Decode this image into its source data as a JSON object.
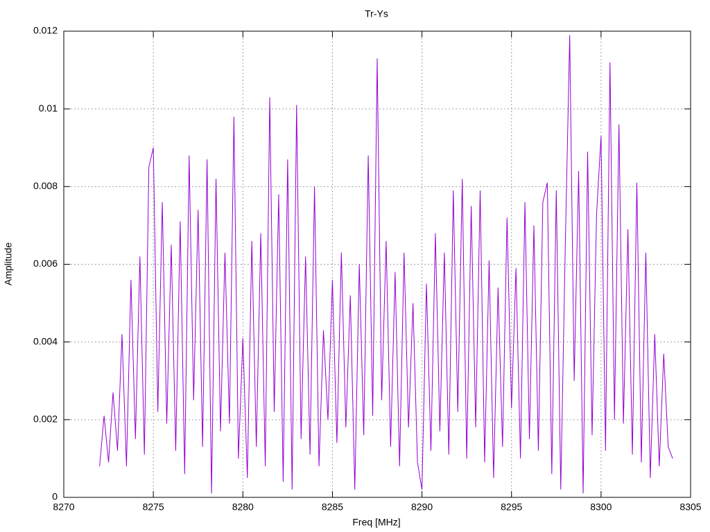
{
  "chart_data": {
    "type": "line",
    "title": "Tr-Ys",
    "xlabel": "Freq [MHz]",
    "ylabel": "Amplitude",
    "xlim": [
      8270,
      8305
    ],
    "ylim": [
      0,
      0.012
    ],
    "xticks": [
      8270,
      8275,
      8280,
      8285,
      8290,
      8295,
      8300,
      8305
    ],
    "yticks": [
      0,
      0.002,
      0.004,
      0.006,
      0.008,
      0.01,
      0.012
    ],
    "grid": true,
    "x": [
      8272,
      8272.25,
      8272.5,
      8272.75,
      8273,
      8273.25,
      8273.5,
      8273.75,
      8274,
      8274.25,
      8274.5,
      8274.75,
      8275,
      8275.25,
      8275.5,
      8275.75,
      8276,
      8276.25,
      8276.5,
      8276.75,
      8277,
      8277.25,
      8277.5,
      8277.75,
      8278,
      8278.25,
      8278.5,
      8278.75,
      8279,
      8279.25,
      8279.5,
      8279.75,
      8280,
      8280.25,
      8280.5,
      8280.75,
      8281,
      8281.25,
      8281.5,
      8281.75,
      8282,
      8282.25,
      8282.5,
      8282.75,
      8283,
      8283.25,
      8283.5,
      8283.75,
      8284,
      8284.25,
      8284.5,
      8284.75,
      8285,
      8285.25,
      8285.5,
      8285.75,
      8286,
      8286.25,
      8286.5,
      8286.75,
      8287,
      8287.25,
      8287.5,
      8287.75,
      8288,
      8288.25,
      8288.5,
      8288.75,
      8289,
      8289.25,
      8289.5,
      8289.75,
      8290,
      8290.25,
      8290.5,
      8290.75,
      8291,
      8291.25,
      8291.5,
      8291.75,
      8292,
      8292.25,
      8292.5,
      8292.75,
      8293,
      8293.25,
      8293.5,
      8293.75,
      8294,
      8294.25,
      8294.5,
      8294.75,
      8295,
      8295.25,
      8295.5,
      8295.75,
      8296,
      8296.25,
      8296.5,
      8296.75,
      8297,
      8297.25,
      8297.5,
      8297.75,
      8298,
      8298.25,
      8298.5,
      8298.75,
      8299,
      8299.25,
      8299.5,
      8299.75,
      8300,
      8300.25,
      8300.5,
      8300.75,
      8301,
      8301.25,
      8301.5,
      8301.75,
      8302,
      8302.25,
      8302.5,
      8302.75,
      8303,
      8303.25,
      8303.5,
      8303.75,
      8304
    ],
    "series": [
      {
        "color": "#9400d3",
        "values": [
          0.0008,
          0.0021,
          0.0009,
          0.0027,
          0.0012,
          0.0042,
          0.0008,
          0.0056,
          0.0015,
          0.0062,
          0.0011,
          0.0085,
          0.009,
          0.0022,
          0.0076,
          0.0019,
          0.0065,
          0.0012,
          0.0071,
          0.0006,
          0.0088,
          0.0025,
          0.0074,
          0.0013,
          0.0087,
          0.0001,
          0.0082,
          0.0017,
          0.0063,
          0.0019,
          0.0098,
          0.001,
          0.0041,
          0.0005,
          0.0066,
          0.0013,
          0.0068,
          0.0008,
          0.0103,
          0.0022,
          0.0078,
          0.0004,
          0.0087,
          0.0002,
          0.0101,
          0.0015,
          0.0062,
          0.0011,
          0.008,
          0.0008,
          0.0043,
          0.002,
          0.0056,
          0.0014,
          0.0063,
          0.0018,
          0.0052,
          0.0002,
          0.006,
          0.0016,
          0.0088,
          0.0021,
          0.0113,
          0.0025,
          0.0066,
          0.0013,
          0.0058,
          0.0008,
          0.0063,
          0.0018,
          0.005,
          0.0009,
          0.0002,
          0.0055,
          0.0012,
          0.0068,
          0.0017,
          0.0063,
          0.0011,
          0.0079,
          0.0022,
          0.0082,
          0.001,
          0.0075,
          0.0018,
          0.0079,
          0.0009,
          0.0061,
          0.0005,
          0.0054,
          0.0013,
          0.0072,
          0.0023,
          0.0059,
          0.001,
          0.0076,
          0.0015,
          0.007,
          0.0012,
          0.0076,
          0.0081,
          0.0006,
          0.0079,
          0.0002,
          0.0064,
          0.0119,
          0.003,
          0.0084,
          0.0001,
          0.0089,
          0.0016,
          0.0073,
          0.0093,
          0.0012,
          0.0112,
          0.002,
          0.0096,
          0.0019,
          0.0069,
          0.0011,
          0.0081,
          0.0009,
          0.0063,
          0.0005,
          0.0042,
          0.0008,
          0.0037,
          0.0013,
          0.001
        ]
      }
    ]
  }
}
